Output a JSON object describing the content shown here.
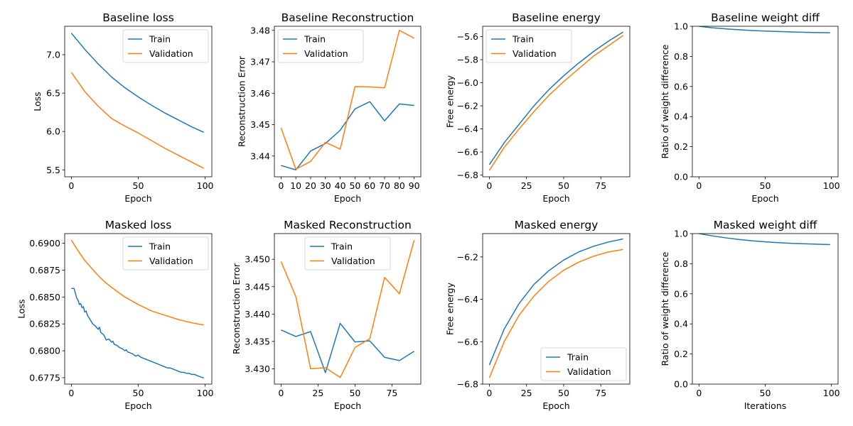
{
  "colors": {
    "train": "#1f77b4",
    "validation": "#ff7f0e"
  },
  "chart_data": [
    {
      "type": "line",
      "title": "Baseline loss",
      "xlabel": "Epoch",
      "ylabel": "Loss",
      "xlim": [
        -5,
        105
      ],
      "ylim": [
        5.41,
        7.37
      ],
      "xticks": [
        0,
        50,
        100
      ],
      "xticklabels": [
        "0",
        "50",
        "100"
      ],
      "yticks": [
        5.5,
        6.0,
        6.5,
        7.0
      ],
      "yticklabels": [
        "5.5",
        "6.0",
        "6.5",
        "7.0"
      ],
      "legend": "top-right",
      "series": [
        {
          "name": "Train",
          "color": "#1f77b4",
          "x": [
            0,
            10,
            20,
            30,
            40,
            50,
            60,
            70,
            80,
            90,
            99
          ],
          "y": [
            7.28,
            7.07,
            6.88,
            6.71,
            6.57,
            6.45,
            6.34,
            6.24,
            6.15,
            6.06,
            5.99
          ]
        },
        {
          "name": "Validation",
          "color": "#ff7f0e",
          "x": [
            0,
            10,
            20,
            30,
            40,
            50,
            60,
            70,
            80,
            90,
            99
          ],
          "y": [
            6.77,
            6.52,
            6.33,
            6.17,
            6.07,
            5.98,
            5.88,
            5.78,
            5.69,
            5.6,
            5.52
          ]
        }
      ]
    },
    {
      "type": "line",
      "title": "Baseline Reconstruction",
      "xlabel": "Epoch",
      "ylabel": "Reconstruction Error",
      "xlim": [
        -4.5,
        94.5
      ],
      "ylim": [
        3.4334,
        3.4813
      ],
      "xticks": [
        0,
        10,
        20,
        30,
        40,
        50,
        60,
        70,
        80,
        90
      ],
      "xticklabels": [
        "0",
        "10",
        "20",
        "30",
        "40",
        "50",
        "60",
        "70",
        "80",
        "90"
      ],
      "yticks": [
        3.44,
        3.45,
        3.46,
        3.47,
        3.48
      ],
      "yticklabels": [
        "3.44",
        "3.45",
        "3.46",
        "3.47",
        "3.48"
      ],
      "legend": "top-left",
      "series": [
        {
          "name": "Train",
          "color": "#1f77b4",
          "x": [
            0,
            10,
            20,
            30,
            40,
            50,
            60,
            70,
            80,
            90
          ],
          "y": [
            3.437,
            3.4356,
            3.4416,
            3.444,
            3.4482,
            3.455,
            3.4573,
            3.4512,
            3.4566,
            3.4561
          ]
        },
        {
          "name": "Validation",
          "color": "#ff7f0e",
          "x": [
            0,
            10,
            20,
            30,
            40,
            50,
            60,
            70,
            80,
            90
          ],
          "y": [
            3.449,
            3.4358,
            3.4383,
            3.4444,
            3.4422,
            3.4621,
            3.462,
            3.4617,
            3.48,
            3.4775
          ]
        }
      ]
    },
    {
      "type": "line",
      "title": "Baseline energy",
      "xlabel": "Epoch",
      "ylabel": "Free energy",
      "xlim": [
        -4.5,
        94.5
      ],
      "ylim": [
        -6.815,
        -5.51
      ],
      "xticks": [
        0,
        25,
        50,
        75
      ],
      "xticklabels": [
        "0",
        "25",
        "50",
        "75"
      ],
      "yticks": [
        -6.8,
        -6.6,
        -6.4,
        -6.2,
        -6.0,
        -5.8,
        -5.6
      ],
      "yticklabels": [
        "−6.8",
        "−6.6",
        "−6.4",
        "−6.2",
        "−6.0",
        "−5.8",
        "−5.6"
      ],
      "legend": "top-left",
      "series": [
        {
          "name": "Train",
          "color": "#1f77b4",
          "x": [
            0,
            10,
            20,
            30,
            40,
            50,
            60,
            70,
            80,
            90
          ],
          "y": [
            -6.71,
            -6.52,
            -6.36,
            -6.2,
            -6.06,
            -5.94,
            -5.83,
            -5.73,
            -5.64,
            -5.56
          ]
        },
        {
          "name": "Validation",
          "color": "#ff7f0e",
          "x": [
            0,
            10,
            20,
            30,
            40,
            50,
            60,
            70,
            80,
            90
          ],
          "y": [
            -6.76,
            -6.56,
            -6.4,
            -6.25,
            -6.11,
            -5.99,
            -5.88,
            -5.77,
            -5.68,
            -5.59
          ]
        }
      ]
    },
    {
      "type": "line",
      "title": "Baseline weight diff",
      "xlabel": "Epoch",
      "ylabel": "Ratio of weight difference",
      "xlim": [
        -5,
        105
      ],
      "ylim": [
        0.0,
        1.0
      ],
      "xticks": [
        0,
        50,
        100
      ],
      "xticklabels": [
        "0",
        "50",
        "100"
      ],
      "yticks": [
        0.0,
        0.2,
        0.4,
        0.6,
        0.8,
        1.0
      ],
      "yticklabels": [
        "0.0",
        "0.2",
        "0.4",
        "0.6",
        "0.8",
        "1.0"
      ],
      "legend": "none",
      "series": [
        {
          "name": "",
          "color": "#1f77b4",
          "x": [
            0,
            10,
            20,
            30,
            40,
            50,
            60,
            70,
            80,
            90,
            99
          ],
          "y": [
            1.0,
            0.99,
            0.983,
            0.977,
            0.972,
            0.968,
            0.965,
            0.962,
            0.96,
            0.958,
            0.957
          ]
        }
      ]
    },
    {
      "type": "line",
      "title": "Masked loss",
      "xlabel": "Epoch",
      "ylabel": "Loss",
      "xlim": [
        -5,
        105
      ],
      "ylim": [
        0.6769,
        0.6909
      ],
      "xticks": [
        0,
        50,
        100
      ],
      "xticklabels": [
        "0",
        "50",
        "100"
      ],
      "yticks": [
        0.6775,
        0.68,
        0.6825,
        0.685,
        0.6875,
        0.69
      ],
      "yticklabels": [
        "0.6775",
        "0.6800",
        "0.6825",
        "0.6850",
        "0.6875",
        "0.6900"
      ],
      "legend": "top-right",
      "series": [
        {
          "name": "Train",
          "color": "#1f77b4",
          "x": [
            0,
            2,
            4,
            5,
            6,
            7,
            8,
            9,
            10,
            11,
            12,
            14,
            16,
            18,
            20,
            21,
            22,
            24,
            25,
            26,
            28,
            30,
            31,
            32,
            34,
            36,
            38,
            40,
            41,
            42,
            44,
            46,
            48,
            50,
            52,
            54,
            56,
            58,
            60,
            62,
            64,
            66,
            68,
            70,
            72,
            74,
            76,
            78,
            80,
            82,
            84,
            86,
            88,
            90,
            92,
            94,
            96,
            98,
            99
          ],
          "y": [
            0.6858,
            0.6858,
            0.6849,
            0.6847,
            0.6843,
            0.6844,
            0.684,
            0.6841,
            0.6836,
            0.6837,
            0.6833,
            0.6829,
            0.6825,
            0.6823,
            0.682,
            0.6822,
            0.6817,
            0.6815,
            0.6813,
            0.681,
            0.6811,
            0.6808,
            0.6809,
            0.6806,
            0.6805,
            0.6803,
            0.6802,
            0.68,
            0.6801,
            0.6799,
            0.6798,
            0.6797,
            0.6795,
            0.6796,
            0.6794,
            0.6793,
            0.6792,
            0.6791,
            0.679,
            0.6789,
            0.6788,
            0.6787,
            0.6786,
            0.6785,
            0.6784,
            0.6784,
            0.6783,
            0.6782,
            0.6781,
            0.678,
            0.678,
            0.6779,
            0.6779,
            0.6778,
            0.6778,
            0.6777,
            0.6776,
            0.6775,
            0.6775
          ]
        },
        {
          "name": "Validation",
          "color": "#ff7f0e",
          "x": [
            0,
            5,
            10,
            15,
            20,
            25,
            30,
            40,
            50,
            60,
            70,
            80,
            90,
            99
          ],
          "y": [
            0.6903,
            0.6893,
            0.6884,
            0.6877,
            0.687,
            0.6864,
            0.6859,
            0.685,
            0.6843,
            0.6837,
            0.6833,
            0.6829,
            0.6826,
            0.6824
          ]
        }
      ]
    },
    {
      "type": "line",
      "title": "Masked Reconstruction",
      "xlabel": "Epoch",
      "ylabel": "Reconstruction Error",
      "xlim": [
        -4.5,
        94.5
      ],
      "ylim": [
        3.4272,
        3.4547
      ],
      "xticks": [
        0,
        25,
        50,
        75
      ],
      "xticklabels": [
        "0",
        "25",
        "50",
        "75"
      ],
      "yticks": [
        3.43,
        3.435,
        3.44,
        3.445,
        3.45
      ],
      "yticklabels": [
        "3.430",
        "3.435",
        "3.440",
        "3.445",
        "3.450"
      ],
      "legend": "top-center",
      "series": [
        {
          "name": "Train",
          "color": "#1f77b4",
          "x": [
            0,
            10,
            20,
            30,
            40,
            50,
            60,
            70,
            80,
            90
          ],
          "y": [
            3.4371,
            3.4359,
            3.4368,
            3.4293,
            3.4383,
            3.4349,
            3.4351,
            3.4321,
            3.4315,
            3.4332
          ]
        },
        {
          "name": "Validation",
          "color": "#ff7f0e",
          "x": [
            0,
            10,
            20,
            30,
            40,
            50,
            60,
            70,
            80,
            90
          ],
          "y": [
            3.4496,
            3.4432,
            3.43,
            3.4302,
            3.4284,
            3.4339,
            3.4355,
            3.4467,
            3.4437,
            3.4535
          ]
        }
      ]
    },
    {
      "type": "line",
      "title": "Masked energy",
      "xlabel": "Epoch",
      "ylabel": "Free energy",
      "xlim": [
        -4.5,
        94.5
      ],
      "ylim": [
        -6.8,
        -6.09
      ],
      "xticks": [
        0,
        25,
        50,
        75
      ],
      "xticklabels": [
        "0",
        "25",
        "50",
        "75"
      ],
      "yticks": [
        -6.8,
        -6.6,
        -6.4,
        -6.2
      ],
      "yticklabels": [
        "−6.8",
        "−6.6",
        "−6.4",
        "−6.2"
      ],
      "legend": "bottom-right",
      "series": [
        {
          "name": "Train",
          "color": "#1f77b4",
          "x": [
            0,
            10,
            20,
            30,
            40,
            50,
            60,
            70,
            80,
            90
          ],
          "y": [
            -6.71,
            -6.54,
            -6.42,
            -6.33,
            -6.265,
            -6.215,
            -6.177,
            -6.15,
            -6.13,
            -6.115
          ]
        },
        {
          "name": "Validation",
          "color": "#ff7f0e",
          "x": [
            0,
            10,
            20,
            30,
            40,
            50,
            60,
            70,
            80,
            90
          ],
          "y": [
            -6.77,
            -6.6,
            -6.475,
            -6.385,
            -6.315,
            -6.263,
            -6.225,
            -6.197,
            -6.177,
            -6.165
          ]
        }
      ]
    },
    {
      "type": "line",
      "title": "Masked weight diff",
      "xlabel": "Iterations",
      "ylabel": "Ratio of weight difference",
      "xlim": [
        -5,
        105
      ],
      "ylim": [
        0.0,
        1.0
      ],
      "xticks": [
        0,
        50,
        100
      ],
      "xticklabels": [
        "0",
        "50",
        "100"
      ],
      "yticks": [
        0.0,
        0.2,
        0.4,
        0.6,
        0.8,
        1.0
      ],
      "yticklabels": [
        "0.0",
        "0.2",
        "0.4",
        "0.6",
        "0.8",
        "1.0"
      ],
      "legend": "none",
      "series": [
        {
          "name": "",
          "color": "#1f77b4",
          "x": [
            0,
            10,
            20,
            30,
            40,
            50,
            60,
            70,
            80,
            90,
            99
          ],
          "y": [
            1.0,
            0.985,
            0.972,
            0.961,
            0.952,
            0.945,
            0.94,
            0.935,
            0.932,
            0.929,
            0.927
          ]
        }
      ]
    }
  ]
}
